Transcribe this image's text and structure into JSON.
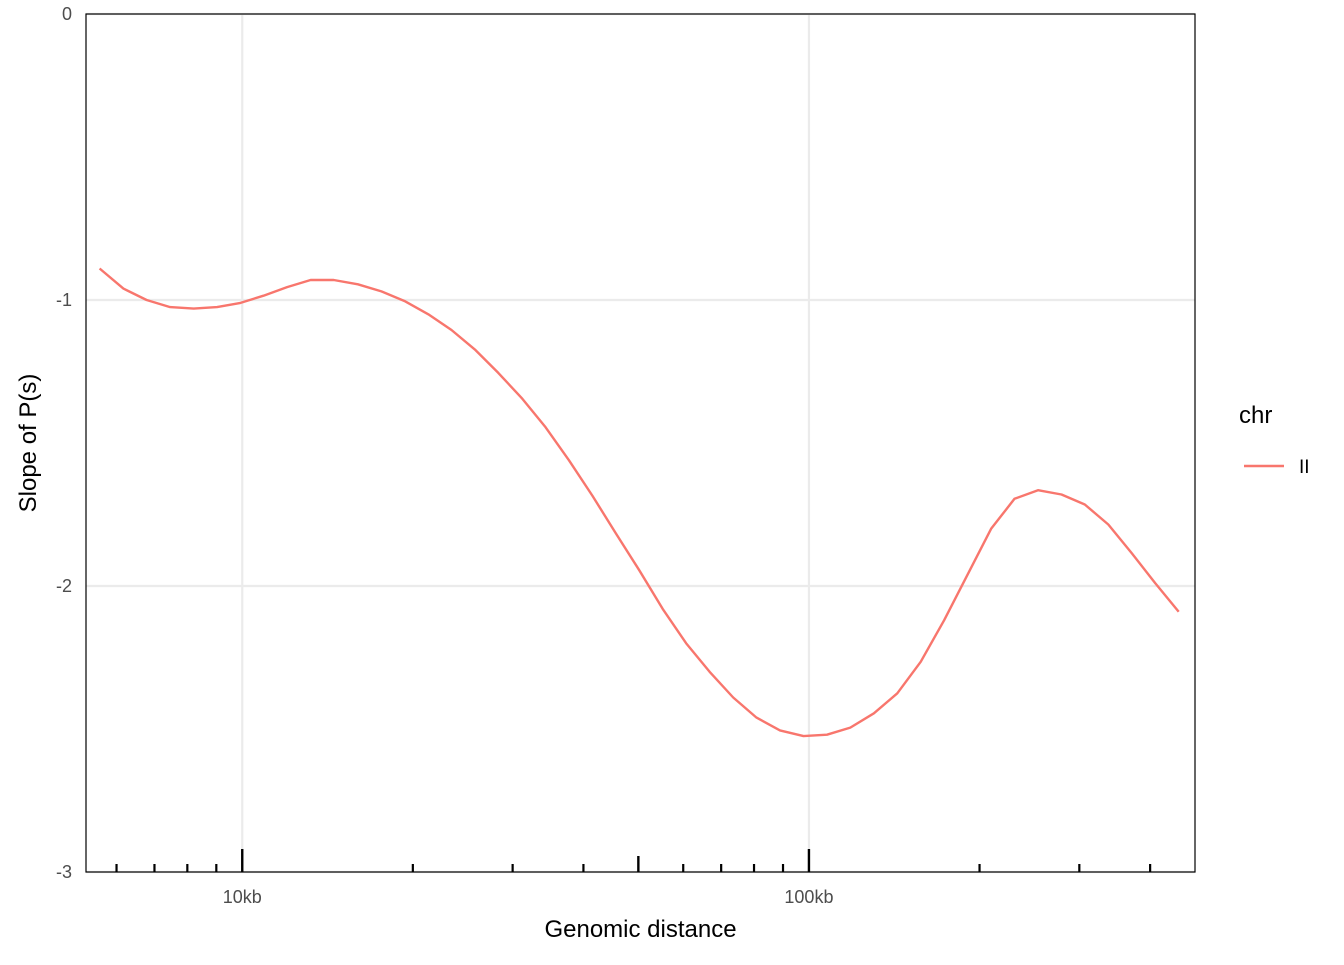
{
  "chart_data": {
    "type": "line",
    "title": "",
    "xlabel": "Genomic distance",
    "ylabel": "Slope of P(s)",
    "x_scale": "log10",
    "x_unit": "bp",
    "xlim": [
      5300,
      480000
    ],
    "ylim": [
      -3,
      0
    ],
    "x_ticks": [
      {
        "value": 10000,
        "label": "10kb"
      },
      {
        "value": 100000,
        "label": "100kb"
      }
    ],
    "y_ticks": [
      {
        "value": 0,
        "label": "0"
      },
      {
        "value": -1,
        "label": "-1"
      },
      {
        "value": -2,
        "label": "-2"
      },
      {
        "value": -3,
        "label": "-3"
      }
    ],
    "rug_major": [
      10000,
      50000,
      100000
    ],
    "rug_minor": [
      6000,
      7000,
      8000,
      9000,
      20000,
      30000,
      40000,
      60000,
      70000,
      80000,
      90000,
      200000,
      300000,
      400000
    ],
    "grid": true,
    "legend_position": "right",
    "legend": {
      "title": "chr",
      "entries": [
        {
          "name": "II",
          "color": "#F8766D"
        }
      ]
    },
    "series": [
      {
        "name": "II",
        "color": "#F8766D",
        "x": [
          5600,
          6170,
          6780,
          7460,
          8210,
          9030,
          9930,
          10900,
          12000,
          13200,
          14500,
          16000,
          17600,
          19400,
          21300,
          23400,
          25800,
          28300,
          31200,
          34300,
          37700,
          41500,
          45600,
          50200,
          55200,
          60700,
          66800,
          73500,
          80800,
          88900,
          97800,
          107600,
          118300,
          130200,
          143200,
          157500,
          173200,
          190500,
          209600,
          230500,
          253600,
          279000,
          306800,
          337500,
          371200,
          408400,
          449200
        ],
        "y": [
          -0.89,
          -0.96,
          -1.0,
          -1.025,
          -1.03,
          -1.025,
          -1.01,
          -0.985,
          -0.955,
          -0.93,
          -0.93,
          -0.945,
          -0.97,
          -1.005,
          -1.05,
          -1.105,
          -1.175,
          -1.255,
          -1.345,
          -1.445,
          -1.56,
          -1.685,
          -1.815,
          -1.945,
          -2.08,
          -2.2,
          -2.3,
          -2.39,
          -2.46,
          -2.505,
          -2.525,
          -2.52,
          -2.495,
          -2.445,
          -2.375,
          -2.265,
          -2.12,
          -1.96,
          -1.8,
          -1.695,
          -1.665,
          -1.68,
          -1.715,
          -1.785,
          -1.885,
          -1.99,
          -2.09
        ]
      }
    ]
  }
}
